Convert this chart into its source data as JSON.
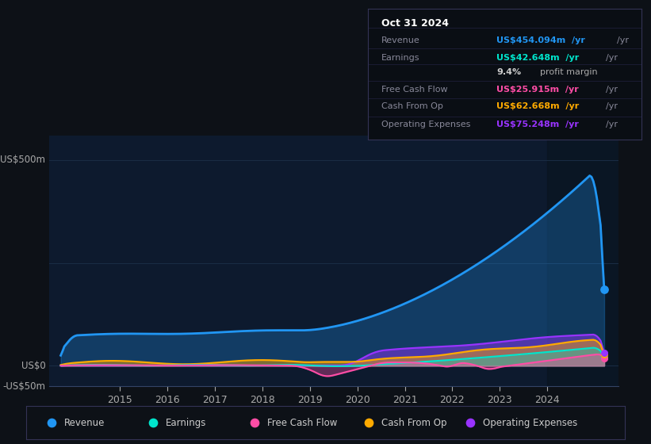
{
  "bg_color": "#0d1117",
  "plot_bg_color": "#0d1a2e",
  "text_color": "#aaaaaa",
  "ylabel_top": "US$500m",
  "ylabel_zero": "US$0",
  "ylabel_neg": "-US$50m",
  "ylim": [
    -50,
    560
  ],
  "xlim": [
    2013.5,
    2025.5
  ],
  "xticks": [
    2015,
    2016,
    2017,
    2018,
    2019,
    2020,
    2021,
    2022,
    2023,
    2024
  ],
  "series_colors": {
    "revenue": "#2196f3",
    "earnings": "#00e5cc",
    "free_cash_flow": "#ff4da6",
    "cash_from_op": "#ffaa00",
    "operating_expenses": "#9933ff"
  },
  "info_box": {
    "title": "Oct 31 2024",
    "rows": [
      {
        "label": "Revenue",
        "value": "US$454.094m",
        "unit": "/yr",
        "color": "#2196f3"
      },
      {
        "label": "Earnings",
        "value": "US$42.648m",
        "unit": "/yr",
        "color": "#00e5cc"
      },
      {
        "label": "",
        "value": "9.4%",
        "extra": " profit margin",
        "color": "#ffffff"
      },
      {
        "label": "Free Cash Flow",
        "value": "US$25.915m",
        "unit": "/yr",
        "color": "#ff4da6"
      },
      {
        "label": "Cash From Op",
        "value": "US$62.668m",
        "unit": "/yr",
        "color": "#ffaa00"
      },
      {
        "label": "Operating Expenses",
        "value": "US$75.248m",
        "unit": "/yr",
        "color": "#9933ff"
      }
    ]
  },
  "legend_entries": [
    {
      "label": "Revenue",
      "color": "#2196f3"
    },
    {
      "label": "Earnings",
      "color": "#00e5cc"
    },
    {
      "label": "Free Cash Flow",
      "color": "#ff4da6"
    },
    {
      "label": "Cash From Op",
      "color": "#ffaa00"
    },
    {
      "label": "Operating Expenses",
      "color": "#9933ff"
    }
  ]
}
